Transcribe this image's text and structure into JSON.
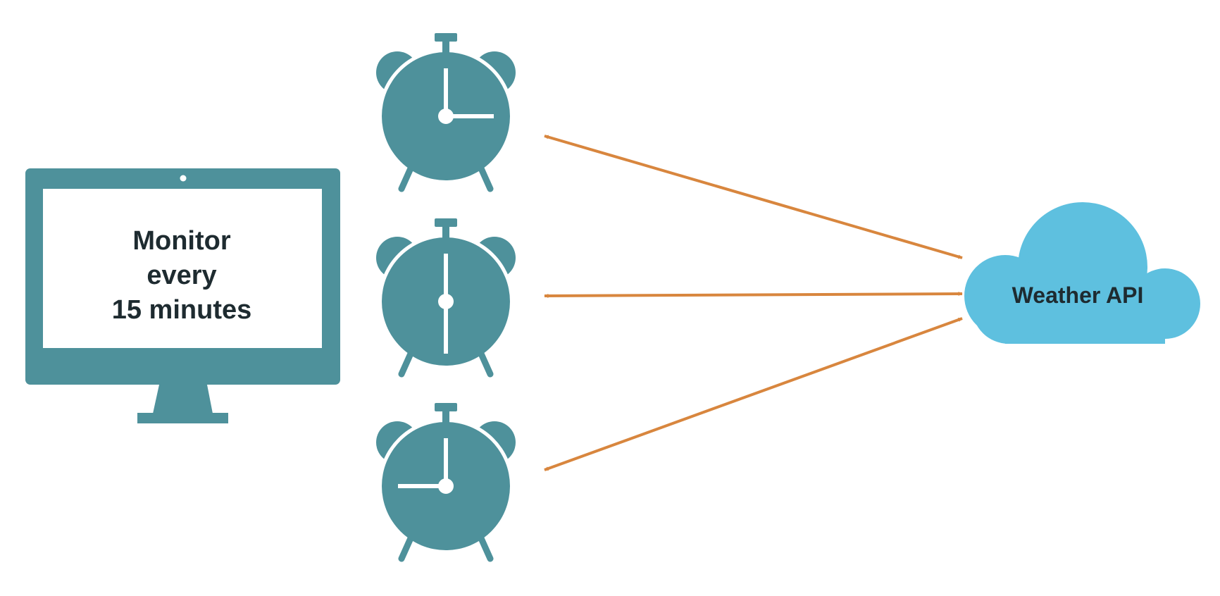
{
  "monitor": {
    "lines": [
      "Monitor",
      "every",
      "15 minutes"
    ]
  },
  "cloud": {
    "label": "Weather API"
  },
  "clocks": [
    {
      "name": "clock-3-oclock",
      "time": "3:00"
    },
    {
      "name": "clock-6-oclock",
      "time": "6:00"
    },
    {
      "name": "clock-9-oclock",
      "time": "9:00"
    }
  ],
  "connectors": [
    {
      "from": "clock-3-oclock",
      "to": "weather-api",
      "direction": "bidirectional"
    },
    {
      "from": "clock-6-oclock",
      "to": "weather-api",
      "direction": "bidirectional"
    },
    {
      "from": "clock-9-oclock",
      "to": "weather-api",
      "direction": "bidirectional"
    }
  ],
  "colors": {
    "teal": "#4e919b",
    "cloud": "#5ec0df",
    "arrow": "#d8863e",
    "text": "#1e2b30"
  },
  "icons": [
    "monitor-icon",
    "alarm-clock-icon",
    "cloud-icon"
  ]
}
